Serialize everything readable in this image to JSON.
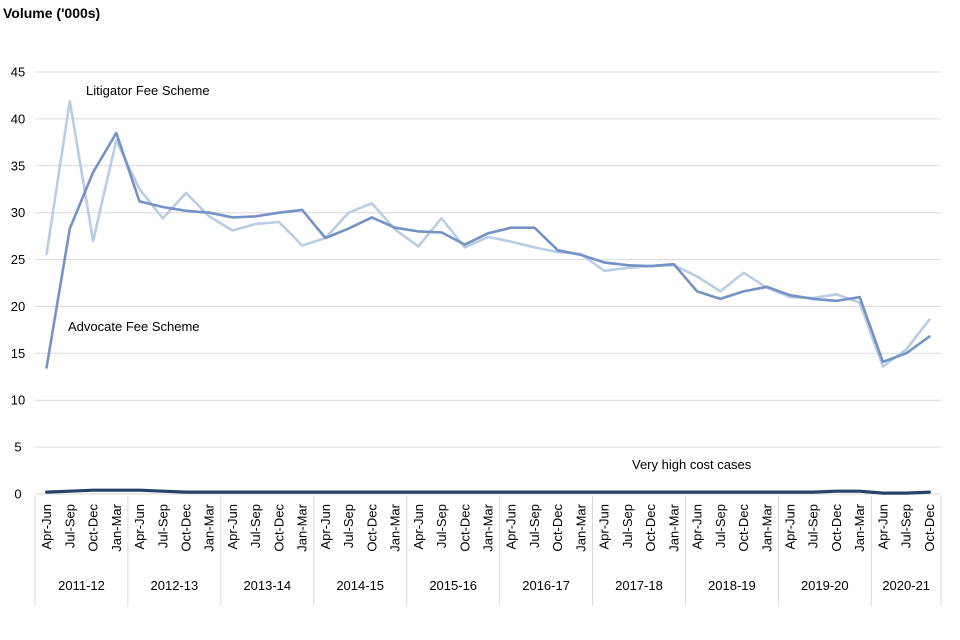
{
  "title": "Volume ('000s)",
  "annotations": {
    "litigator_label": "Litigator Fee Scheme",
    "advocate_label": "Advocate Fee Scheme",
    "vhcc_label": "Very high cost cases"
  },
  "chart_data": {
    "type": "line",
    "title": "Volume ('000s)",
    "ylabel": "Volume ('000s)",
    "xlabel": "",
    "ylim": [
      0,
      45
    ],
    "yticks": [
      0,
      5,
      10,
      15,
      20,
      25,
      30,
      35,
      40,
      45
    ],
    "grid": true,
    "grid_color": "#d9d9d9",
    "legend_position": "inline-annotations",
    "x_groups": [
      {
        "year": "2011-12",
        "quarters": [
          "Apr-Jun",
          "Jul-Sep",
          "Oct-Dec",
          "Jan-Mar"
        ]
      },
      {
        "year": "2012-13",
        "quarters": [
          "Apr-Jun",
          "Jul-Sep",
          "Oct-Dec",
          "Jan-Mar"
        ]
      },
      {
        "year": "2013-14",
        "quarters": [
          "Apr-Jun",
          "Jul-Sep",
          "Oct-Dec",
          "Jan-Mar"
        ]
      },
      {
        "year": "2014-15",
        "quarters": [
          "Apr-Jun",
          "Jul-Sep",
          "Oct-Dec",
          "Jan-Mar"
        ]
      },
      {
        "year": "2015-16",
        "quarters": [
          "Apr-Jun",
          "Jul-Sep",
          "Oct-Dec",
          "Jan-Mar"
        ]
      },
      {
        "year": "2016-17",
        "quarters": [
          "Apr-Jun",
          "Jul-Sep",
          "Oct-Dec",
          "Jan-Mar"
        ]
      },
      {
        "year": "2017-18",
        "quarters": [
          "Apr-Jun",
          "Jul-Sep",
          "Oct-Dec",
          "Jan-Mar"
        ]
      },
      {
        "year": "2018-19",
        "quarters": [
          "Apr-Jun",
          "Jul-Sep",
          "Oct-Dec",
          "Jan-Mar"
        ]
      },
      {
        "year": "2019-20",
        "quarters": [
          "Apr-Jun",
          "Jul-Sep",
          "Oct-Dec",
          "Jan-Mar"
        ]
      },
      {
        "year": "2020-21",
        "quarters": [
          "Apr-Jun",
          "Jul-Sep",
          "Oct-Dec"
        ]
      }
    ],
    "series": [
      {
        "id": "litigator-fee-scheme",
        "name": "Litigator Fee Scheme",
        "color": "#b9cde4",
        "width": 2.6,
        "values": [
          25.6,
          41.9,
          27.0,
          37.7,
          32.5,
          29.4,
          32.1,
          29.6,
          28.1,
          28.8,
          29.0,
          26.5,
          27.3,
          30.0,
          31.0,
          28.2,
          26.4,
          29.4,
          26.3,
          27.4,
          26.9,
          26.3,
          25.8,
          25.6,
          23.8,
          24.1,
          24.3,
          24.4,
          23.2,
          21.6,
          23.6,
          22.0,
          21.0,
          20.9,
          21.3,
          20.4,
          13.6,
          15.4,
          18.6
        ]
      },
      {
        "id": "advocate-fee-scheme",
        "name": "Advocate Fee Scheme",
        "color": "#7592c6",
        "width": 2.6,
        "values": [
          13.5,
          28.3,
          34.3,
          38.5,
          31.2,
          30.6,
          30.2,
          30.0,
          29.5,
          29.6,
          30.0,
          30.3,
          27.3,
          28.3,
          29.5,
          28.4,
          28.0,
          27.9,
          26.6,
          27.8,
          28.4,
          28.4,
          26.0,
          25.5,
          24.7,
          24.4,
          24.3,
          24.5,
          21.6,
          20.8,
          21.6,
          22.1,
          21.2,
          20.8,
          20.6,
          21.0,
          14.1,
          15.0,
          16.8
        ]
      },
      {
        "id": "very-high-cost-cases",
        "name": "Very high cost cases",
        "color": "#27436b",
        "width": 3.2,
        "values": [
          0.2,
          0.3,
          0.4,
          0.4,
          0.4,
          0.3,
          0.2,
          0.2,
          0.2,
          0.2,
          0.2,
          0.2,
          0.2,
          0.2,
          0.2,
          0.2,
          0.2,
          0.2,
          0.2,
          0.2,
          0.2,
          0.2,
          0.2,
          0.2,
          0.2,
          0.2,
          0.2,
          0.2,
          0.2,
          0.2,
          0.2,
          0.2,
          0.2,
          0.2,
          0.3,
          0.3,
          0.1,
          0.1,
          0.2
        ]
      }
    ]
  }
}
